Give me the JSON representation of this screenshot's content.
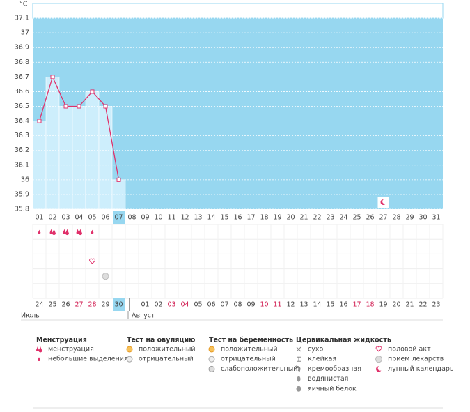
{
  "unit": "°C",
  "chart_data": {
    "type": "line",
    "categories": [
      "01",
      "02",
      "03",
      "04",
      "05",
      "06",
      "07",
      "08",
      "09",
      "10",
      "11",
      "12",
      "13",
      "14",
      "15",
      "16",
      "17",
      "18",
      "19",
      "20",
      "21",
      "22",
      "23",
      "24",
      "25",
      "26",
      "27",
      "28",
      "29",
      "30",
      "31"
    ],
    "values": [
      36.4,
      36.7,
      36.5,
      36.5,
      36.6,
      36.5,
      36,
      null,
      null,
      null,
      null,
      null,
      null,
      null,
      null,
      null,
      null,
      null,
      null,
      null,
      null,
      null,
      null,
      null,
      null,
      null,
      null,
      null,
      null,
      null,
      null
    ],
    "ylim": [
      35.8,
      37.2
    ],
    "yticks": [
      35.8,
      35.9,
      36,
      36.1,
      36.2,
      36.3,
      36.4,
      36.5,
      36.6,
      36.7,
      36.8,
      36.9,
      37,
      37.1
    ],
    "color": "#e0306a",
    "grid": true,
    "selected": "07",
    "cycle_days": [
      "24",
      "25",
      "26",
      "27",
      "28",
      "29",
      "30",
      null,
      "01",
      "02",
      "03",
      "04",
      "05",
      "06",
      "07",
      "08",
      "09",
      "10",
      "11",
      "12",
      "13",
      "14",
      "15",
      "16",
      "17",
      "18",
      "19",
      "20",
      "21",
      "22",
      "23"
    ],
    "cycle_selected": "30",
    "cycle_red": [
      "27",
      "28",
      "03",
      "04",
      "10",
      "11",
      "17",
      "18"
    ],
    "months": [
      "Июль",
      "Август"
    ],
    "events": [
      {
        "kind": "menstruation",
        "days": [
          "02",
          "03",
          "04"
        ]
      },
      {
        "kind": "spotting",
        "days": [
          "01",
          "05"
        ]
      },
      {
        "kind": "intercourse",
        "days": [
          "05"
        ]
      },
      {
        "kind": "medication",
        "days": [
          "06"
        ]
      },
      {
        "kind": "lunar",
        "days": [
          "27"
        ]
      }
    ]
  },
  "legend": [
    {
      "title": "Менструация",
      "items": [
        {
          "kind": "menstruation",
          "label": "менструация"
        },
        {
          "kind": "spotting",
          "label": "небольшие выделения"
        }
      ]
    },
    {
      "title": "Тест на овуляцию",
      "items": [
        {
          "kind": "ovu_pos",
          "label": "положительный"
        },
        {
          "kind": "ovu_neg",
          "label": "отрицательный"
        }
      ]
    },
    {
      "title": "Тест на беременность",
      "items": [
        {
          "kind": "preg_pos",
          "label": "положительный"
        },
        {
          "kind": "preg_neg",
          "label": "отрицательный"
        },
        {
          "kind": "preg_weak",
          "label": "слабоположительный"
        }
      ]
    },
    {
      "title": "Цервикальная жидкость",
      "items": [
        {
          "kind": "dry",
          "label": "сухо"
        },
        {
          "kind": "sticky",
          "label": "клейкая"
        },
        {
          "kind": "creamy",
          "label": "кремообразная"
        },
        {
          "kind": "watery",
          "label": "водянистая"
        },
        {
          "kind": "eggwhite",
          "label": "яичный белок"
        }
      ]
    },
    {
      "items": [
        {
          "kind": "intercourse",
          "label": "половой акт"
        },
        {
          "kind": "medication",
          "label": "прием лекарств"
        },
        {
          "kind": "lunar",
          "label": "лунный календарь"
        }
      ]
    }
  ]
}
